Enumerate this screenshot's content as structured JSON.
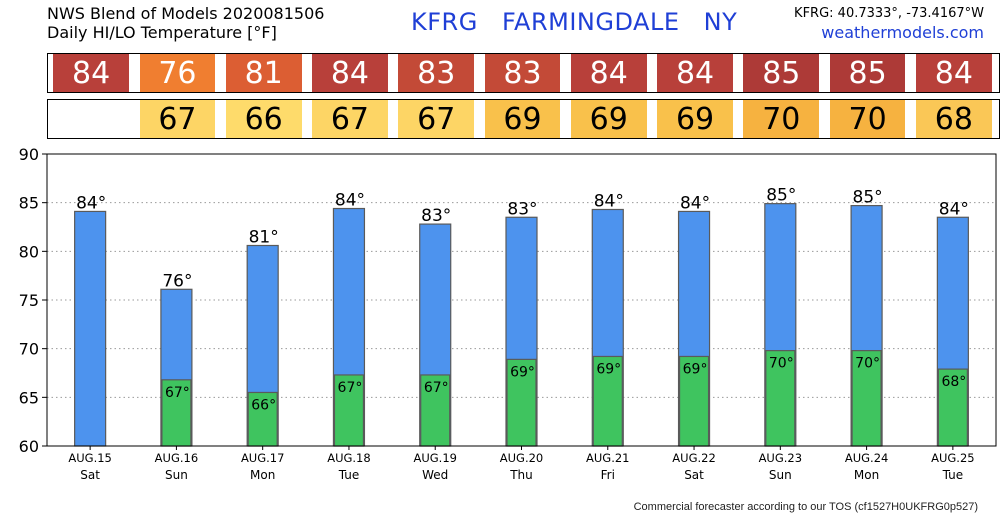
{
  "header": {
    "title_line1": "NWS Blend of Models 2020081506",
    "title_line2": "Daily HI/LO Temperature [°F]",
    "station": "KFRG FARMINGDALE NY",
    "coords": "KFRG: 40.7333°, -73.4167°W",
    "website": "weathermodels.com"
  },
  "footer": {
    "text": "Commercial forecaster according to our TOS (cf1527H0UKFRG0p527)"
  },
  "colors": {
    "hi_bar": "#4d93ee",
    "lo_bar": "#3fc45f",
    "bar_outline": "#5a5a5a",
    "link_blue": "#1f3fd6",
    "hi_cells": [
      "#b8403a",
      "#f07e30",
      "#dc5e33",
      "#b8403a",
      "#c34a37",
      "#c34a37",
      "#b8403a",
      "#b8403a",
      "#ad3a37",
      "#ad3a37",
      "#b8403a"
    ],
    "lo_cells": [
      null,
      "#fdd565",
      "#fedb6b",
      "#fdd565",
      "#fdd565",
      "#f9c14b",
      "#f9c14b",
      "#f9c14b",
      "#f6b240",
      "#f6b240",
      "#fac756"
    ]
  },
  "hi_strip": [
    "84",
    "76",
    "81",
    "84",
    "83",
    "83",
    "84",
    "84",
    "85",
    "85",
    "84"
  ],
  "lo_strip": [
    "",
    "67",
    "66",
    "67",
    "67",
    "69",
    "69",
    "69",
    "70",
    "70",
    "68"
  ],
  "chart_data": {
    "type": "bar",
    "categories": [
      "AUG.15",
      "AUG.16",
      "AUG.17",
      "AUG.18",
      "AUG.19",
      "AUG.20",
      "AUG.21",
      "AUG.22",
      "AUG.23",
      "AUG.24",
      "AUG.25"
    ],
    "weekdays": [
      "Sat",
      "Sun",
      "Mon",
      "Tue",
      "Wed",
      "Thu",
      "Fri",
      "Sat",
      "Sun",
      "Mon",
      "Tue"
    ],
    "series": [
      {
        "values": [
          84.1,
          76.1,
          80.6,
          84.4,
          82.8,
          83.5,
          84.3,
          84.1,
          84.9,
          84.7,
          83.5
        ],
        "labels": [
          "84°",
          "76°",
          "81°",
          "84°",
          "83°",
          "83°",
          "84°",
          "84°",
          "85°",
          "85°",
          "84°"
        ]
      },
      {
        "values": [
          null,
          66.8,
          65.5,
          67.3,
          67.3,
          68.9,
          69.2,
          69.2,
          69.8,
          69.8,
          67.9
        ],
        "labels": [
          "",
          "67°",
          "66°",
          "67°",
          "67°",
          "69°",
          "69°",
          "69°",
          "70°",
          "70°",
          "68°"
        ]
      }
    ],
    "ylim": [
      60,
      90
    ],
    "yticks": [
      "60",
      "65",
      "70",
      "75",
      "80",
      "85",
      "90"
    ],
    "grid": true
  }
}
